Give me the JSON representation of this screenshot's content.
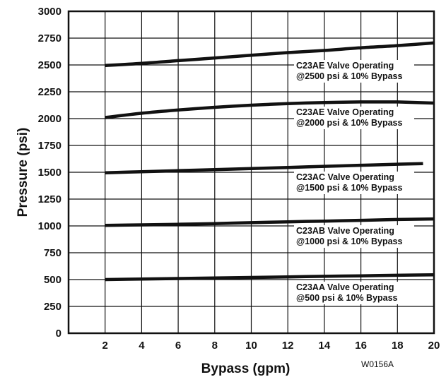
{
  "chart_data": {
    "type": "line",
    "title": "",
    "xlabel": "Bypass (gpm)",
    "ylabel": "Pressure (psi)",
    "xlim": [
      0,
      20
    ],
    "ylim": [
      0,
      3000
    ],
    "xticks": [
      "2",
      "4",
      "6",
      "8",
      "10",
      "12",
      "14",
      "16",
      "18",
      "20"
    ],
    "yticks": [
      "0",
      "250",
      "500",
      "750",
      "1000",
      "1250",
      "1500",
      "1750",
      "2000",
      "2250",
      "2500",
      "2750",
      "3000"
    ],
    "grid": true,
    "legend": "none",
    "figure_code": "W0156A",
    "series": [
      {
        "x": [
          2,
          4,
          6,
          8,
          10,
          12,
          14,
          16,
          18,
          20
        ],
        "y": [
          2495,
          2515,
          2540,
          2565,
          2590,
          2615,
          2635,
          2660,
          2680,
          2705
        ],
        "label_lines": [
          "C23AE Valve Operating",
          "@2500 psi & 10% Bypass"
        ]
      },
      {
        "x": [
          2,
          4,
          6,
          8,
          10,
          12,
          14,
          16,
          17,
          18,
          20
        ],
        "y": [
          2010,
          2050,
          2080,
          2105,
          2125,
          2140,
          2150,
          2155,
          2155,
          2155,
          2145
        ],
        "label_lines": [
          "C23AE Valve Operating",
          "@2000 psi & 10% Bypass"
        ]
      },
      {
        "x": [
          2,
          4,
          6,
          8,
          10,
          12,
          14,
          16,
          18,
          19.4
        ],
        "y": [
          1495,
          1505,
          1515,
          1525,
          1535,
          1545,
          1555,
          1565,
          1575,
          1580
        ],
        "label_lines": [
          "C23AC Valve Operating",
          "@1500 psi & 10% Bypass"
        ]
      },
      {
        "x": [
          2,
          4,
          6,
          8,
          10,
          12,
          14,
          16,
          18,
          20
        ],
        "y": [
          1005,
          1010,
          1015,
          1022,
          1030,
          1038,
          1045,
          1052,
          1060,
          1065
        ],
        "label_lines": [
          "C23AB Valve Operating",
          "@1000 psi & 10% Bypass"
        ]
      },
      {
        "x": [
          2,
          4,
          6,
          8,
          10,
          12,
          14,
          16,
          18,
          20
        ],
        "y": [
          500,
          505,
          510,
          515,
          520,
          525,
          530,
          535,
          540,
          545
        ],
        "label_lines": [
          "C23AA Valve Operating",
          "@500 psi & 10% Bypass"
        ]
      }
    ]
  }
}
